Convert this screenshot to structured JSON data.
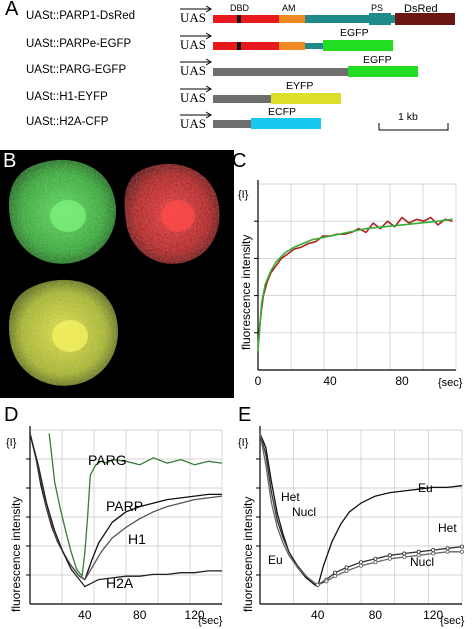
{
  "panel_a": {
    "letter": "A",
    "constructs": [
      {
        "name": "UASt::PARP1-DsRed",
        "promoter": "UAS",
        "tag": "DsRed"
      },
      {
        "name": "UASt::PARPe-EGFP",
        "promoter": "UAS",
        "tag": "EGFP"
      },
      {
        "name": "UASt::PARG-EGFP",
        "promoter": "UAS",
        "tag": "EGFP"
      },
      {
        "name": "UASt::H1-EYFP",
        "promoter": "UAS",
        "tag": "EYFP"
      },
      {
        "name": "UASt::H2A-CFP",
        "promoter": "UAS",
        "tag": "ECFP"
      }
    ],
    "domains": {
      "dbd": "DBD",
      "am": "AM",
      "ps": "PS"
    },
    "scale_label": "1 kb",
    "colors": {
      "dbd_block": "#e8191c",
      "zinc": "#111111",
      "am": "#f08a24",
      "catalytic": "#1f8a8a",
      "dsred": "#6b1515",
      "egfp": "#22dd22",
      "eyfp": "#dde02a",
      "ecfp": "#18c8ee",
      "parg_body": "#6e6e6e"
    }
  },
  "panel_b": {
    "letter": "B",
    "image_description_colors": {
      "green": "#3cc43c",
      "red": "#d62020",
      "merge": "#c8c830"
    }
  },
  "panel_c": {
    "letter": "C",
    "y_unit_label": "{I}",
    "ylabel": "fluorescence intensity",
    "x_unit": "{sec}",
    "chart_data": {
      "type": "line",
      "xlabel": "{sec}",
      "ylabel": "fluorescence intensity",
      "x_ticks": [
        0,
        40,
        80
      ],
      "xlim": [
        0,
        110
      ],
      "ylim": [
        0,
        1
      ],
      "series": [
        {
          "color": "#b02020",
          "x": [
            0,
            1,
            2,
            3,
            5,
            7,
            10,
            13,
            16,
            20,
            24,
            28,
            32,
            36,
            40,
            44,
            48,
            52,
            56,
            60,
            64,
            68,
            72,
            76,
            80,
            84,
            88,
            92,
            96,
            100,
            104,
            108
          ],
          "y": [
            0.12,
            0.24,
            0.33,
            0.4,
            0.47,
            0.52,
            0.56,
            0.6,
            0.62,
            0.65,
            0.66,
            0.68,
            0.69,
            0.72,
            0.72,
            0.73,
            0.73,
            0.74,
            0.76,
            0.74,
            0.79,
            0.76,
            0.8,
            0.77,
            0.82,
            0.79,
            0.81,
            0.8,
            0.82,
            0.78,
            0.81,
            0.8
          ]
        },
        {
          "color": "#34b034",
          "x": [
            0,
            2,
            4,
            7,
            10,
            15,
            20,
            30,
            40,
            50,
            60,
            70,
            80,
            90,
            100,
            108
          ],
          "y": [
            0.1,
            0.36,
            0.46,
            0.53,
            0.58,
            0.63,
            0.66,
            0.7,
            0.72,
            0.74,
            0.76,
            0.77,
            0.78,
            0.79,
            0.8,
            0.81
          ]
        }
      ]
    }
  },
  "panel_d": {
    "letter": "D",
    "y_unit_label": "{I}",
    "ylabel": "fluorescence intensity",
    "x_unit": "{sec}",
    "series_labels": {
      "parg": "PARG",
      "parp": "PARP",
      "h1": "H1",
      "h2a": "H2A"
    },
    "chart_data": {
      "type": "line",
      "xlabel": "{sec}",
      "ylabel": "fluorescence intensity",
      "x_ticks": [
        40,
        80,
        120
      ],
      "xlim": [
        0,
        140
      ],
      "ylim": [
        0,
        1
      ],
      "series": [
        {
          "name": "PARG",
          "color": "#3a7a3a",
          "x": [
            14,
            18,
            22,
            26,
            30,
            34,
            38,
            40,
            42,
            44,
            48,
            52,
            56,
            60,
            70,
            80,
            90,
            100,
            110,
            120,
            130,
            140
          ],
          "y": [
            0.98,
            0.7,
            0.55,
            0.42,
            0.3,
            0.2,
            0.16,
            0.3,
            0.5,
            0.74,
            0.8,
            0.82,
            0.81,
            0.83,
            0.82,
            0.8,
            0.84,
            0.81,
            0.83,
            0.8,
            0.82,
            0.81
          ]
        },
        {
          "name": "PARP",
          "color": "#111111",
          "x": [
            0,
            4,
            8,
            12,
            16,
            20,
            24,
            28,
            32,
            36,
            40,
            45,
            50,
            60,
            70,
            80,
            90,
            100,
            110,
            120,
            130,
            140
          ],
          "y": [
            0.98,
            0.85,
            0.68,
            0.55,
            0.44,
            0.36,
            0.3,
            0.24,
            0.2,
            0.16,
            0.14,
            0.25,
            0.35,
            0.47,
            0.53,
            0.56,
            0.58,
            0.6,
            0.61,
            0.62,
            0.63,
            0.63
          ]
        },
        {
          "name": "H1",
          "color": "#555555",
          "x": [
            0,
            6,
            12,
            18,
            24,
            30,
            36,
            40,
            46,
            52,
            60,
            70,
            80,
            90,
            100,
            110,
            120,
            130,
            140
          ],
          "y": [
            0.98,
            0.78,
            0.56,
            0.4,
            0.3,
            0.22,
            0.16,
            0.14,
            0.22,
            0.3,
            0.38,
            0.44,
            0.49,
            0.53,
            0.56,
            0.58,
            0.6,
            0.61,
            0.62
          ]
        },
        {
          "name": "H2A",
          "color": "#222222",
          "x": [
            0,
            6,
            12,
            18,
            24,
            30,
            36,
            40,
            45,
            50,
            60,
            70,
            80,
            90,
            100,
            110,
            120,
            130,
            140
          ],
          "y": [
            0.98,
            0.8,
            0.58,
            0.42,
            0.3,
            0.2,
            0.14,
            0.1,
            0.12,
            0.14,
            0.15,
            0.16,
            0.16,
            0.17,
            0.17,
            0.18,
            0.18,
            0.19,
            0.19
          ]
        }
      ]
    }
  },
  "panel_e": {
    "letter": "E",
    "y_unit_label": "{I}",
    "ylabel": "fluorescence intensity",
    "x_unit": "{sec}",
    "series_labels": {
      "eu_top": "Eu",
      "het_left": "Het",
      "nucl_left": "Nucl",
      "eu_left": "Eu",
      "het_right": "Het",
      "nucl_right": "Nucl"
    },
    "chart_data": {
      "type": "line",
      "xlabel": "{sec}",
      "ylabel": "fluorescence intensity",
      "x_ticks": [
        40,
        80,
        120
      ],
      "xlim": [
        0,
        140
      ],
      "ylim": [
        0,
        1
      ],
      "series": [
        {
          "name": "Eu",
          "color": "#111111",
          "x": [
            0,
            4,
            8,
            12,
            16,
            20,
            26,
            32,
            38,
            40,
            44,
            50,
            56,
            62,
            70,
            80,
            90,
            100,
            110,
            120,
            130,
            140
          ],
          "y": [
            0.98,
            0.9,
            0.7,
            0.52,
            0.4,
            0.3,
            0.21,
            0.15,
            0.11,
            0.1,
            0.22,
            0.36,
            0.46,
            0.53,
            0.58,
            0.62,
            0.64,
            0.65,
            0.66,
            0.67,
            0.67,
            0.68
          ]
        },
        {
          "name": "Het",
          "color": "#333333",
          "x": [
            0,
            4,
            8,
            12,
            16,
            20,
            26,
            32,
            38,
            40,
            46,
            52,
            60,
            70,
            80,
            90,
            100,
            110,
            120,
            130,
            140
          ],
          "y": [
            0.98,
            0.86,
            0.64,
            0.48,
            0.38,
            0.3,
            0.22,
            0.16,
            0.12,
            0.11,
            0.14,
            0.18,
            0.21,
            0.24,
            0.26,
            0.28,
            0.29,
            0.3,
            0.31,
            0.32,
            0.33
          ]
        },
        {
          "name": "Nucl",
          "color": "#666666",
          "x": [
            0,
            4,
            8,
            12,
            16,
            20,
            26,
            32,
            38,
            40,
            46,
            52,
            60,
            70,
            80,
            90,
            100,
            110,
            120,
            130,
            140
          ],
          "y": [
            0.98,
            0.8,
            0.58,
            0.44,
            0.35,
            0.28,
            0.21,
            0.16,
            0.12,
            0.11,
            0.13,
            0.16,
            0.19,
            0.22,
            0.24,
            0.26,
            0.27,
            0.28,
            0.29,
            0.3,
            0.3
          ]
        }
      ]
    }
  }
}
